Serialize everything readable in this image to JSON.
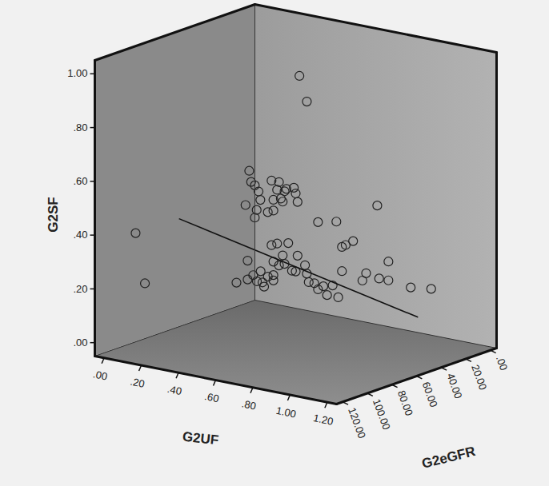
{
  "chart_data": {
    "type": "scatter",
    "x_label": "G2UF",
    "y_label": "G2eGFR",
    "z_label": "G2SF",
    "marker": "circle",
    "color": "#222222",
    "x": [
      0.07,
      0.12,
      0.35,
      0.36,
      0.38,
      0.4,
      0.41,
      0.39,
      0.38,
      0.33,
      0.47,
      0.5,
      0.51,
      0.52,
      0.48,
      0.45,
      0.48,
      0.54,
      0.55,
      0.53,
      0.6,
      0.61,
      0.59,
      0.62,
      0.66,
      0.48,
      0.54,
      0.54,
      0.57,
      0.59,
      0.61,
      0.62,
      0.45,
      0.48,
      0.43,
      0.48,
      0.47,
      0.5,
      0.48,
      0.51,
      0.53,
      0.54,
      0.56,
      0.58,
      0.6,
      0.61,
      0.65,
      0.66,
      0.67,
      0.7,
      0.72,
      0.72,
      0.55,
      0.57,
      0.6,
      0.63,
      0.65,
      0.67,
      0.71,
      0.62,
      0.65,
      0.76,
      0.78,
      0.84,
      0.85,
      0.9,
      0.9,
      1.02,
      1.13
    ],
    "y": [
      110,
      110,
      60,
      60,
      60,
      60,
      60,
      60,
      60,
      60,
      60,
      60,
      60,
      60,
      60,
      60,
      60,
      60,
      60,
      60,
      60,
      60,
      60,
      60,
      60,
      90,
      90,
      90,
      90,
      90,
      90,
      90,
      60,
      60,
      60,
      60,
      60,
      60,
      60,
      60,
      60,
      60,
      60,
      60,
      60,
      60,
      60,
      60,
      60,
      60,
      60,
      60,
      30,
      30,
      30,
      30,
      30,
      30,
      30,
      30,
      30,
      30,
      30,
      30,
      30,
      30,
      30,
      30,
      30
    ],
    "z": [
      0.4,
      0.22,
      0.59,
      0.55,
      0.54,
      0.52,
      0.49,
      0.45,
      0.42,
      0.46,
      0.57,
      0.54,
      0.57,
      0.51,
      0.5,
      0.45,
      0.46,
      0.54,
      0.55,
      0.5,
      0.54,
      0.51,
      0.56,
      0.98,
      0.89,
      0.24,
      0.33,
      0.26,
      0.28,
      0.26,
      0.3,
      0.26,
      0.21,
      0.22,
      0.17,
      0.2,
      0.33,
      0.34,
      0.27,
      0.26,
      0.3,
      0.27,
      0.35,
      0.25,
      0.25,
      0.31,
      0.28,
      0.25,
      0.22,
      0.22,
      0.2,
      0.45,
      0.14,
      0.11,
      0.15,
      0.11,
      0.21,
      0.31,
      0.33,
      0.39,
      0.3,
      0.19,
      0.22,
      0.48,
      0.21,
      0.28,
      0.21,
      0.2,
      0.21
    ],
    "fit_line": {
      "x": [
        0.24,
        0.99
      ],
      "y": [
        100,
        20
      ],
      "z": [
        0.46,
        0.07
      ]
    },
    "xlim": [
      -0.05,
      1.25
    ],
    "ylim": [
      -5,
      125
    ],
    "zlim": [
      -0.05,
      1.05
    ],
    "xticks": [
      {
        "value": 0,
        "label": ".00"
      },
      {
        "value": 0.2,
        "label": ".20"
      },
      {
        "value": 0.4,
        "label": ".40"
      },
      {
        "value": 0.6,
        "label": ".60"
      },
      {
        "value": 0.8,
        "label": ".80"
      },
      {
        "value": 1.0,
        "label": "1.00"
      },
      {
        "value": 1.2,
        "label": "1.20"
      }
    ],
    "yticks": [
      {
        "value": 0,
        "label": ".00"
      },
      {
        "value": 20,
        "label": "20.00"
      },
      {
        "value": 40,
        "label": "40.00"
      },
      {
        "value": 60,
        "label": "60.00"
      },
      {
        "value": 80,
        "label": "80.00"
      },
      {
        "value": 100,
        "label": "100.00"
      },
      {
        "value": 120,
        "label": "120.00"
      }
    ],
    "zticks": [
      {
        "value": 0,
        "label": ".00"
      },
      {
        "value": 0.2,
        "label": ".20"
      },
      {
        "value": 0.4,
        "label": ".40"
      },
      {
        "value": 0.6,
        "label": ".60"
      },
      {
        "value": 0.8,
        "label": ".80"
      },
      {
        "value": 1.0,
        "label": "1.00"
      }
    ]
  }
}
